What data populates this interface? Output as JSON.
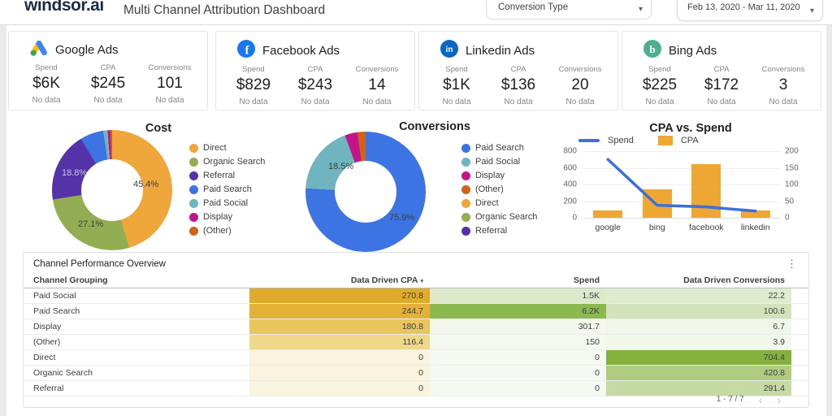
{
  "header": {
    "logo_text": "windsor.ai",
    "title": "Multi Channel Attribution Dashboard",
    "conversion_type": {
      "label": "Conversion Type"
    },
    "date_range": {
      "label": "Feb 13, 2020 - Mar 11, 2020"
    }
  },
  "cards": [
    {
      "title": "Google Ads",
      "icon": "google-ads-icon",
      "metrics": [
        {
          "label": "Spend",
          "value": "$6K",
          "note": "No data"
        },
        {
          "label": "CPA",
          "value": "$245",
          "note": "No data"
        },
        {
          "label": "Conversions",
          "value": "101",
          "note": "No data"
        }
      ]
    },
    {
      "title": "Facebook Ads",
      "icon": "facebook-icon",
      "metrics": [
        {
          "label": "Spend",
          "value": "$829",
          "note": "No data"
        },
        {
          "label": "CPA",
          "value": "$243",
          "note": "No data"
        },
        {
          "label": "Conversions",
          "value": "14",
          "note": "No data"
        }
      ]
    },
    {
      "title": "Linkedin Ads",
      "icon": "linkedin-icon",
      "metrics": [
        {
          "label": "Spend",
          "value": "$1K",
          "note": "No data"
        },
        {
          "label": "CPA",
          "value": "$136",
          "note": "No data"
        },
        {
          "label": "Conversions",
          "value": "20",
          "note": "No data"
        }
      ]
    },
    {
      "title": "Bing Ads",
      "icon": "bing-icon",
      "metrics": [
        {
          "label": "Spend",
          "value": "$225",
          "note": "No data"
        },
        {
          "label": "CPA",
          "value": "$172",
          "note": "No data"
        },
        {
          "label": "Conversions",
          "value": "3",
          "note": "No data"
        }
      ]
    }
  ],
  "chart_data": [
    {
      "type": "pie",
      "title": "Cost",
      "legend_position": "right",
      "labels": [
        "Direct",
        "Organic Search",
        "Referral",
        "Paid Search",
        "Paid Social",
        "Display",
        "(Other)"
      ],
      "values": [
        45.4,
        27.1,
        18.8,
        6.3,
        1.2,
        0.7,
        0.5
      ],
      "colors": [
        "#EFA63B",
        "#93AE52",
        "#5632A8",
        "#3D74E4",
        "#6EB5C0",
        "#C2158B",
        "#CF6317"
      ],
      "shown_labels": {
        "direct": "45.4%",
        "organic": "27.1%",
        "referral": "18.8%"
      }
    },
    {
      "type": "pie",
      "title": "Conversions",
      "legend_position": "right",
      "labels": [
        "Paid Search",
        "Paid Social",
        "Display",
        "(Other)",
        "Direct",
        "Organic Search",
        "Referral"
      ],
      "values": [
        75.9,
        18.5,
        3.4,
        2.2,
        0,
        0,
        0
      ],
      "colors": [
        "#3D74E4",
        "#6EB5C0",
        "#C2158B",
        "#CF6317",
        "#EFA63B",
        "#93AE52",
        "#5632A8"
      ],
      "shown_labels": {
        "paid_search": "75.9%",
        "paid_social": "18.5%"
      }
    },
    {
      "type": "combo",
      "title": "CPA vs. Spend",
      "legend_position": "top",
      "grid": true,
      "categories": [
        "google",
        "bing",
        "facebook",
        "linkedin"
      ],
      "series": [
        {
          "name": "Spend",
          "type": "line",
          "axis": "left",
          "color": "#3B6FDB",
          "values": [
            700,
            150,
            130,
            80
          ]
        },
        {
          "name": "CPA",
          "type": "bar",
          "axis": "left",
          "color": "#EFA733",
          "values": [
            90,
            340,
            640,
            85
          ]
        }
      ],
      "left_axis": {
        "ticks": [
          800,
          600,
          400,
          200,
          0
        ],
        "max": 800
      },
      "right_axis": {
        "ticks": [
          200,
          150,
          100,
          50,
          0
        ],
        "max": 200
      }
    }
  ],
  "table": {
    "title": "Channel Performance Overview",
    "columns": [
      "Channel Grouping",
      "Data Driven CPA",
      "Spend",
      "Data Driven Conversions"
    ],
    "sort_column": "Data Driven CPA",
    "sort_arrow": "▾",
    "rows": [
      {
        "channel": "Paid Social",
        "cpa": "270.8",
        "cpa_bg": "#E0AB2B",
        "spend": "1.5K",
        "spend_bg": "#DEE9CB",
        "conv": "22.2",
        "conv_bg": "#E0EACE"
      },
      {
        "channel": "Paid Search",
        "cpa": "244.7",
        "cpa_bg": "#E2B135",
        "spend": "6.2K",
        "spend_bg": "#8BB84F",
        "conv": "100.6",
        "conv_bg": "#D2E2BA"
      },
      {
        "channel": "Display",
        "cpa": "180.8",
        "cpa_bg": "#E9C55E",
        "spend": "301.7",
        "spend_bg": "#F3F7EC",
        "conv": "6.7",
        "conv_bg": "#F1F6EA"
      },
      {
        "channel": "(Other)",
        "cpa": "116.4",
        "cpa_bg": "#F0D88A",
        "spend": "150",
        "spend_bg": "#F4F8EE",
        "conv": "3.9",
        "conv_bg": "#F2F7EB"
      },
      {
        "channel": "Direct",
        "cpa": "0",
        "cpa_bg": "#FAF3DE",
        "spend": "0",
        "spend_bg": "#F6F9F1",
        "conv": "704.4",
        "conv_bg": "#83B13C"
      },
      {
        "channel": "Organic Search",
        "cpa": "0",
        "cpa_bg": "#FAF3DE",
        "spend": "0",
        "spend_bg": "#F6F9F1",
        "conv": "420.8",
        "conv_bg": "#AFCB80"
      },
      {
        "channel": "Referral",
        "cpa": "0",
        "cpa_bg": "#FAF3DE",
        "spend": "0",
        "spend_bg": "#F6F9F1",
        "conv": "291.4",
        "conv_bg": "#C5D9A2"
      }
    ],
    "pagination": "1 - 7 / 7",
    "prev_glyph": "‹",
    "next_glyph": "›",
    "kebab_glyph": "⋮"
  },
  "brand_colors": {
    "google_yellow": "#FBBC04",
    "google_blue": "#4285F4",
    "google_green": "#34A853",
    "facebook_blue": "#1877F2",
    "linkedin_blue": "#0A66C2",
    "bing_green": "#4CB08C",
    "line_blue": "#3B6FDB",
    "bar_orange": "#EFA733"
  }
}
